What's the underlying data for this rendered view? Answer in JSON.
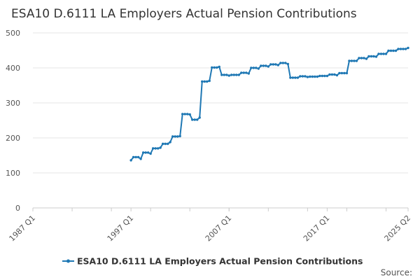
{
  "chart_data": {
    "type": "line",
    "title": "ESA10 D.6111 LA Employers Actual Pension Contributions",
    "xlabel": "",
    "ylabel": "",
    "ylim": [
      0,
      500
    ],
    "y_ticks": [
      "0",
      "100",
      "200",
      "300",
      "400",
      "500"
    ],
    "x_tick_labels": [
      "1987 Q1",
      "1997 Q1",
      "2007 Q1",
      "2017 Q1",
      "2025 Q2"
    ],
    "grid": true,
    "legend_position": "bottom",
    "source_label": "Source:",
    "series": [
      {
        "name": "ESA10 D.6111 LA Employers Actual Pension Contributions",
        "color": "#1f78b4",
        "x": [
          "1997 Q1",
          "1997 Q2",
          "1997 Q3",
          "1997 Q4",
          "1998 Q1",
          "1998 Q2",
          "1998 Q3",
          "1998 Q4",
          "1999 Q1",
          "1999 Q2",
          "1999 Q3",
          "1999 Q4",
          "2000 Q1",
          "2000 Q2",
          "2000 Q3",
          "2000 Q4",
          "2001 Q1",
          "2001 Q2",
          "2001 Q3",
          "2001 Q4",
          "2002 Q1",
          "2002 Q2",
          "2002 Q3",
          "2002 Q4",
          "2003 Q1",
          "2003 Q2",
          "2003 Q3",
          "2003 Q4",
          "2004 Q1",
          "2004 Q2",
          "2004 Q3",
          "2004 Q4",
          "2005 Q1",
          "2005 Q2",
          "2005 Q3",
          "2005 Q4",
          "2006 Q1",
          "2006 Q2",
          "2006 Q3",
          "2006 Q4",
          "2007 Q1",
          "2007 Q2",
          "2007 Q3",
          "2007 Q4",
          "2008 Q1",
          "2008 Q2",
          "2008 Q3",
          "2008 Q4",
          "2009 Q1",
          "2009 Q2",
          "2009 Q3",
          "2009 Q4",
          "2010 Q1",
          "2010 Q2",
          "2010 Q3",
          "2010 Q4",
          "2011 Q1",
          "2011 Q2",
          "2011 Q3",
          "2011 Q4",
          "2012 Q1",
          "2012 Q2",
          "2012 Q3",
          "2012 Q4",
          "2013 Q1",
          "2013 Q2",
          "2013 Q3",
          "2013 Q4",
          "2014 Q1",
          "2014 Q2",
          "2014 Q3",
          "2014 Q4",
          "2015 Q1",
          "2015 Q2",
          "2015 Q3",
          "2015 Q4",
          "2016 Q1",
          "2016 Q2",
          "2016 Q3",
          "2016 Q4",
          "2017 Q1",
          "2017 Q2",
          "2017 Q3",
          "2017 Q4",
          "2018 Q1",
          "2018 Q2",
          "2018 Q3",
          "2018 Q4",
          "2019 Q1",
          "2019 Q2",
          "2019 Q3",
          "2019 Q4",
          "2020 Q1",
          "2020 Q2",
          "2020 Q3",
          "2020 Q4",
          "2021 Q1",
          "2021 Q2",
          "2021 Q3",
          "2021 Q4",
          "2022 Q1",
          "2022 Q2",
          "2022 Q3",
          "2022 Q4",
          "2023 Q1",
          "2023 Q2",
          "2023 Q3",
          "2023 Q4",
          "2024 Q1",
          "2024 Q2",
          "2024 Q3",
          "2024 Q4",
          "2025 Q1",
          "2025 Q2"
        ],
        "values": [
          136,
          145,
          145,
          145,
          140,
          158,
          158,
          158,
          155,
          170,
          170,
          170,
          172,
          183,
          183,
          183,
          188,
          204,
          204,
          204,
          205,
          268,
          268,
          268,
          267,
          252,
          252,
          252,
          258,
          361,
          361,
          361,
          363,
          401,
          401,
          401,
          403,
          380,
          380,
          380,
          378,
          380,
          380,
          380,
          380,
          386,
          386,
          386,
          384,
          400,
          400,
          400,
          398,
          406,
          406,
          406,
          404,
          410,
          410,
          410,
          408,
          414,
          414,
          414,
          411,
          372,
          372,
          372,
          372,
          376,
          376,
          376,
          374,
          375,
          375,
          375,
          375,
          377,
          377,
          377,
          377,
          381,
          381,
          381,
          379,
          385,
          385,
          385,
          385,
          420,
          420,
          420,
          420,
          428,
          428,
          428,
          426,
          433,
          433,
          433,
          432,
          440,
          440,
          440,
          440,
          449,
          449,
          449,
          449,
          454,
          454,
          454,
          454,
          457
        ]
      }
    ]
  }
}
